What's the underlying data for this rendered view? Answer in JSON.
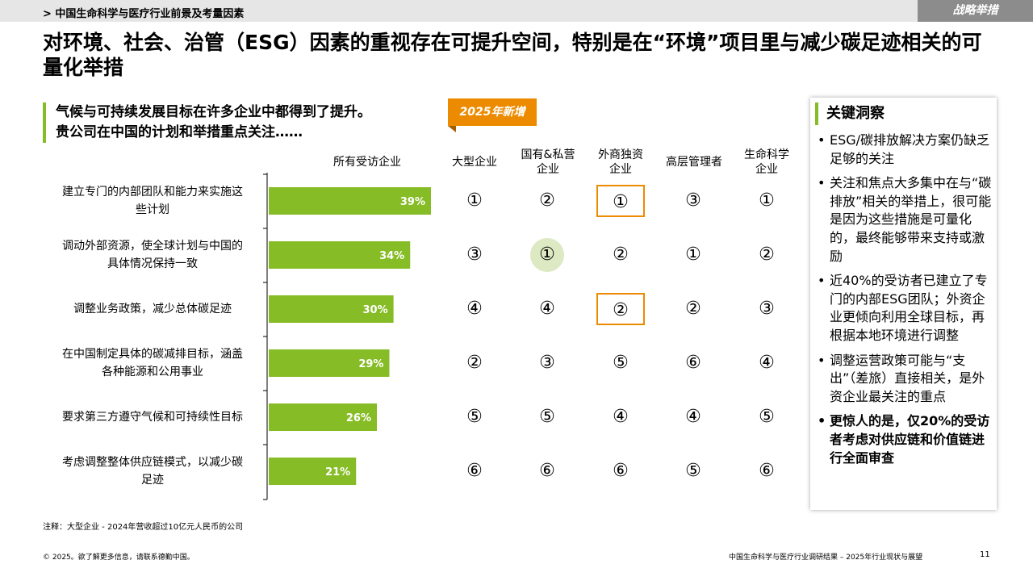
{
  "header": {
    "breadcrumb": "> 中国生命科学与医疗行业前景及考量因素",
    "tag": "战略举措"
  },
  "headline": "对环境、社会、治管（ESG）因素的重视存在可提升空间，特别是在“环境”项目里与减少碳足迹相关的可量化举措",
  "subhead": {
    "line1": "气候与可持续发展目标在许多企业中都得到了提升。",
    "line2": "贵公司在中国的计划和举措重点关注……",
    "badge": "2025年新增"
  },
  "columns": {
    "all": "所有受访企业",
    "large": "大型企业",
    "soe_private": [
      "国有&私营",
      "企业"
    ],
    "foreign": [
      "外商独资",
      "企业"
    ],
    "senior": "高层管理者",
    "lifesci": [
      "生命科学",
      "企业"
    ]
  },
  "chart_data": {
    "type": "bar",
    "orientation": "horizontal",
    "categories": [
      [
        "建立专门的内部团队和能力来实施这",
        "些计划"
      ],
      [
        "调动外部资源，使全球计划与中国的",
        "具体情况保持一致"
      ],
      [
        "调整业务政策，减少总体碳足迹"
      ],
      [
        "在中国制定具体的碳减排目标，涵盖",
        "各种能源和公用事业"
      ],
      [
        "要求第三方遵守气候和可持续性目标"
      ],
      [
        "考虑调整整体供应链模式，以减少碳",
        "足迹"
      ]
    ],
    "values": [
      39,
      34,
      30,
      29,
      26,
      21
    ],
    "value_labels": [
      "39%",
      "34%",
      "30%",
      "29%",
      "26%",
      "21%"
    ],
    "xlim": [
      0,
      100
    ],
    "bar_color": "#86bc25",
    "label_color": "#ffffff"
  },
  "ranks": {
    "large": [
      "①",
      "③",
      "④",
      "②",
      "⑤",
      "⑥"
    ],
    "soe_private": [
      "②",
      "①",
      "④",
      "③",
      "⑤",
      "⑥"
    ],
    "foreign": [
      "①",
      "②",
      "②",
      "⑤",
      "④",
      "⑥"
    ],
    "senior": [
      "③",
      "①",
      "②",
      "⑥",
      "④",
      "⑤"
    ],
    "lifesci": [
      "①",
      "②",
      "③",
      "④",
      "⑤",
      "⑥"
    ]
  },
  "insight": {
    "title": "关键洞察",
    "bullets": [
      "ESG/碳排放解决方案仍缺乏足够的关注",
      "关注和焦点大多集中在与“碳排放”相关的举措上，很可能是因为这些措施是可量化的，最终能够带来支持或激励",
      "近40%的受访者已建立了专门的内部ESG团队；外资企业更倾向利用全球目标，再根据本地环境进行调整",
      "调整运营政策可能与“支出”（差旅）直接相关，是外资企业最关注的重点",
      "更惊人的是，仅20%的受访者考虑对供应链和价值链进行全面审查"
    ]
  },
  "colors": {
    "accent_green": "#86bc25",
    "accent_orange": "#ed8b00",
    "highlight_green": "#dce9c3",
    "topbar_gray": "#e6e6e6",
    "tag_gray": "#8c8c8c"
  },
  "footer": {
    "note": "注释：大型企业 - 2024年营收超过10亿元人民币的公司",
    "copyright": "© 2025。欲了解更多信息，请联系德勤中国。",
    "title": "中国生命科学与医疗行业调研结果 – 2025年行业现状与展望",
    "page": "11"
  }
}
